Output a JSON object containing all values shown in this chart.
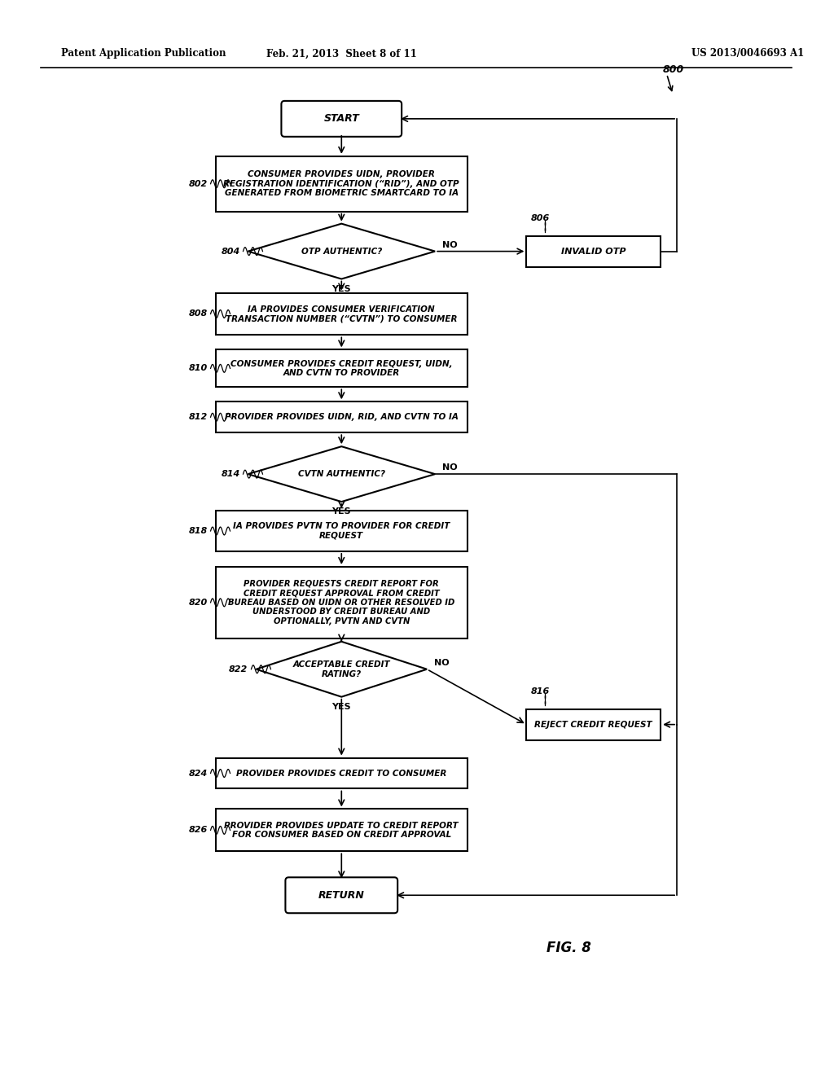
{
  "bg_color": "#ffffff",
  "header_left": "Patent Application Publication",
  "header_mid": "Feb. 21, 2013  Sheet 8 of 11",
  "header_right": "US 2013/0046693 A1",
  "fig_label": "FIG. 8"
}
